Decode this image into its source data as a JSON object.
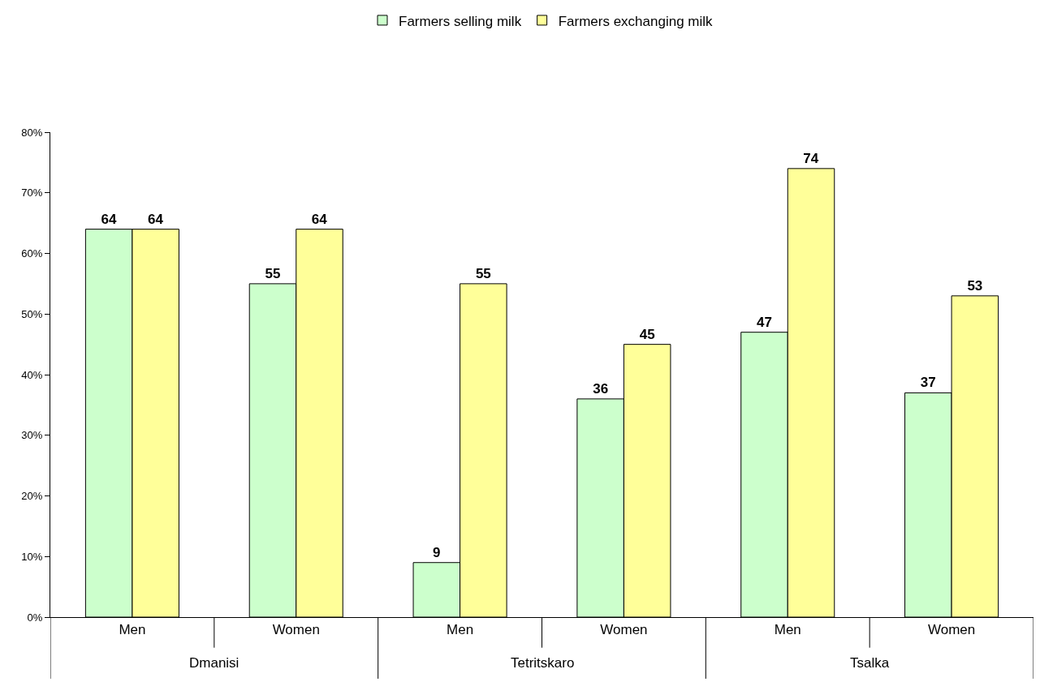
{
  "chart_data": {
    "type": "bar",
    "categories": [
      "Men",
      "Women",
      "Men",
      "Women",
      "Men",
      "Women"
    ],
    "series": [
      {
        "name": "Farmers selling milk",
        "color": "#ccffcc",
        "values": [
          64,
          55,
          9,
          36,
          47,
          37
        ]
      },
      {
        "name": "Farmers exchanging milk",
        "color": "#ffff99",
        "values": [
          64,
          64,
          55,
          45,
          74,
          53
        ]
      }
    ],
    "annotations": [
      "Dmanisi",
      "Tetritskaro",
      "Tsalka"
    ],
    "ylim": [
      0,
      80
    ],
    "yticks": [
      {
        "value": 0,
        "label": "0%"
      },
      {
        "value": 10,
        "label": "10%"
      },
      {
        "value": 20,
        "label": "20%"
      },
      {
        "value": 30,
        "label": "30%"
      },
      {
        "value": 40,
        "label": "40%"
      },
      {
        "value": 50,
        "label": "50%"
      },
      {
        "value": 60,
        "label": "60%"
      },
      {
        "value": 70,
        "label": "70%"
      },
      {
        "value": 80,
        "label": "80%"
      }
    ],
    "data_labels": true,
    "legend": "top"
  }
}
